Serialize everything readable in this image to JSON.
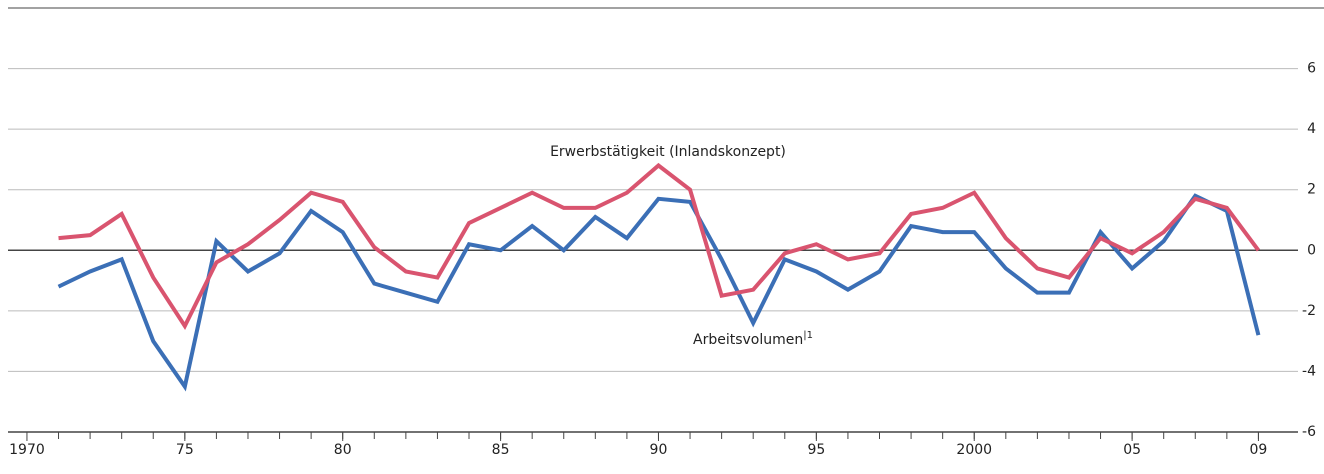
{
  "chart_data": {
    "type": "line",
    "x": [
      1971,
      1972,
      1973,
      1974,
      1975,
      1976,
      1977,
      1978,
      1979,
      1980,
      1981,
      1982,
      1983,
      1984,
      1985,
      1986,
      1987,
      1988,
      1989,
      1990,
      1991,
      1992,
      1993,
      1994,
      1995,
      1996,
      1997,
      1998,
      1999,
      2000,
      2001,
      2002,
      2003,
      2004,
      2005,
      2006,
      2007,
      2008,
      2009
    ],
    "series": [
      {
        "name": "Arbeitsvolumen",
        "footnote": "|1",
        "color": "#3b6fb6",
        "values": [
          -1.2,
          -0.7,
          -0.3,
          -3.0,
          -4.5,
          0.3,
          -0.7,
          -0.1,
          1.3,
          0.6,
          -1.1,
          -1.4,
          -1.7,
          0.2,
          0.0,
          0.8,
          0.0,
          1.1,
          0.4,
          1.7,
          1.6,
          -0.3,
          -2.4,
          -0.3,
          -0.7,
          -1.3,
          -0.7,
          0.8,
          0.6,
          0.6,
          -0.6,
          -1.4,
          -1.4,
          0.6,
          -0.6,
          0.3,
          1.8,
          1.3,
          -2.8
        ]
      },
      {
        "name": "Erwerbstätigkeit (Inlandskonzept)",
        "color": "#d9546f",
        "values": [
          0.4,
          0.5,
          1.2,
          -0.9,
          -2.5,
          -0.4,
          0.2,
          1.0,
          1.9,
          1.6,
          0.1,
          -0.7,
          -0.9,
          0.9,
          1.4,
          1.9,
          1.4,
          1.4,
          1.9,
          2.8,
          2.0,
          -1.5,
          -1.3,
          -0.1,
          0.2,
          -0.3,
          -0.1,
          1.2,
          1.4,
          1.9,
          0.4,
          -0.6,
          -0.9,
          0.4,
          -0.1,
          0.6,
          1.7,
          1.4,
          0.0
        ]
      }
    ],
    "xlim": [
      1969.4,
      2010
    ],
    "xticks": [
      1970,
      {
        "value": 1975,
        "label": "75"
      },
      {
        "value": 1980,
        "label": "80"
      },
      {
        "value": 1985,
        "label": "85"
      },
      {
        "value": 1990,
        "label": "90"
      },
      {
        "value": 1995,
        "label": "95"
      },
      2000,
      {
        "value": 2005,
        "label": "05"
      },
      {
        "value": 2009,
        "label": "09"
      }
    ],
    "ylim": [
      -6,
      8
    ],
    "yticks": [
      -6,
      -4,
      -2,
      0,
      2,
      4,
      6
    ],
    "grid": true
  }
}
